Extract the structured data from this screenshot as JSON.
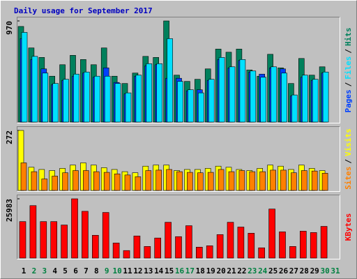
{
  "title": "Daily usage for September 2017",
  "chart_data": [
    {
      "type": "bar",
      "ylim": [
        0,
        970
      ],
      "yticks": [
        970
      ],
      "legend_separator": "/",
      "series": [
        {
          "name": "Hits",
          "color": "#00805c",
          "values": [
            917,
            711,
            620,
            440,
            550,
            640,
            600,
            550,
            711,
            440,
            370,
            470,
            630,
            620,
            970,
            450,
            390,
            410,
            510,
            700,
            670,
            700,
            500,
            440,
            650,
            520,
            370,
            610,
            450,
            530,
            0
          ]
        },
        {
          "name": "Files",
          "color": "#00e0ff",
          "values": [
            860,
            630,
            470,
            370,
            410,
            460,
            480,
            440,
            440,
            370,
            280,
            450,
            560,
            560,
            800,
            390,
            310,
            280,
            410,
            620,
            530,
            600,
            490,
            430,
            530,
            470,
            260,
            450,
            410,
            480,
            0
          ]
        },
        {
          "name": "Pages",
          "color": "#0040ff",
          "values": [
            800,
            600,
            510,
            360,
            400,
            440,
            470,
            430,
            520,
            380,
            270,
            440,
            540,
            550,
            420,
            420,
            300,
            310,
            400,
            600,
            520,
            590,
            480,
            460,
            520,
            510,
            250,
            430,
            400,
            470,
            0
          ]
        }
      ]
    },
    {
      "type": "bar",
      "ylim": [
        0,
        272
      ],
      "yticks": [
        272
      ],
      "legend_separator": "/",
      "series": [
        {
          "name": "Visits",
          "color": "#ffff00",
          "values": [
            272,
            105,
            95,
            90,
            100,
            115,
            125,
            115,
            103,
            95,
            85,
            80,
            110,
            115,
            115,
            90,
            95,
            95,
            100,
            110,
            105,
            95,
            90,
            100,
            115,
            110,
            95,
            115,
            100,
            90,
            0
          ]
        },
        {
          "name": "Sites",
          "color": "#ff8000",
          "values": [
            125,
            85,
            52,
            65,
            80,
            90,
            90,
            85,
            82,
            75,
            70,
            62,
            90,
            92,
            95,
            85,
            82,
            80,
            82,
            95,
            85,
            90,
            85,
            85,
            92,
            92,
            80,
            90,
            88,
            78,
            0
          ]
        }
      ]
    },
    {
      "type": "bar",
      "ylim": [
        0,
        25983
      ],
      "yticks": [
        25983
      ],
      "categories": [
        "1",
        "2",
        "3",
        "4",
        "5",
        "6",
        "7",
        "8",
        "9",
        "10",
        "11",
        "12",
        "13",
        "14",
        "15",
        "16",
        "17",
        "18",
        "19",
        "20",
        "21",
        "22",
        "23",
        "24",
        "25",
        "26",
        "27",
        "28",
        "29",
        "30",
        "31"
      ],
      "category_colors": [
        "#000000",
        "#008040",
        "#008040",
        "#000000",
        "#000000",
        "#000000",
        "#000000",
        "#000000",
        "#008040",
        "#008040",
        "#000000",
        "#000000",
        "#000000",
        "#000000",
        "#000000",
        "#008040",
        "#008040",
        "#000000",
        "#000000",
        "#000000",
        "#000000",
        "#000000",
        "#008040",
        "#008040",
        "#000000",
        "#000000",
        "#000000",
        "#000000",
        "#000000",
        "#008040",
        "#008040"
      ],
      "series": [
        {
          "name": "KBytes",
          "color": "#ff0000",
          "values": [
            16000,
            23000,
            16000,
            16000,
            14500,
            25983,
            20500,
            10000,
            20000,
            6600,
            3300,
            9700,
            5100,
            8800,
            15700,
            9400,
            14200,
            4800,
            5400,
            10300,
            15700,
            13600,
            10900,
            4500,
            21500,
            11500,
            5100,
            11800,
            11200,
            13900,
            0
          ]
        }
      ]
    }
  ]
}
